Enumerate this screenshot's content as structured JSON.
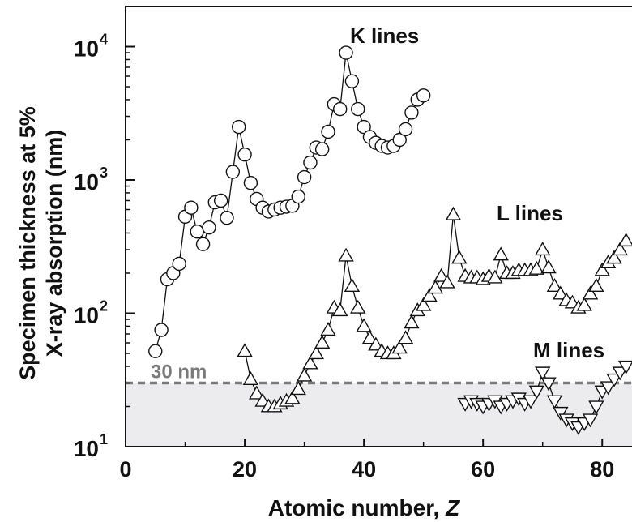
{
  "chart_data": {
    "type": "scatter",
    "title": "",
    "xlabel": "Atomic number, ",
    "xlabel_var": "Z",
    "ylabel_line1": "Specimen thickness at 5%",
    "ylabel_line2": "X-ray absorption (nm)",
    "xlim": [
      0,
      85
    ],
    "ylim": [
      10,
      20000
    ],
    "y_scale": "log",
    "grid": false,
    "x_ticks": [
      0,
      20,
      40,
      60,
      80
    ],
    "x_tick_labels": [
      "0",
      "20",
      "40",
      "60",
      "80"
    ],
    "y_ticks": [
      10,
      100,
      1000,
      10000
    ],
    "y_tick_bases": [
      "10",
      "10",
      "10",
      "10"
    ],
    "y_tick_exponents": [
      "1",
      "2",
      "3",
      "4"
    ],
    "reference_line": {
      "value": 30,
      "label": "30 nm",
      "color": "#7a7a7a",
      "shade_color": "#ececef"
    },
    "series": [
      {
        "name": "K lines",
        "marker": "circle",
        "x": [
          5,
          6,
          7,
          8,
          9,
          10,
          11,
          12,
          13,
          14,
          15,
          16,
          17,
          18,
          19,
          20,
          21,
          22,
          23,
          24,
          25,
          26,
          27,
          28,
          29,
          30,
          31,
          32,
          33,
          34,
          35,
          36,
          37,
          38,
          39,
          40,
          41,
          42,
          43,
          44,
          45,
          46,
          47,
          48,
          49,
          50
        ],
        "y": [
          52,
          75,
          180,
          200,
          235,
          530,
          620,
          410,
          330,
          440,
          680,
          700,
          520,
          1150,
          2500,
          1550,
          950,
          720,
          620,
          580,
          600,
          620,
          630,
          640,
          750,
          1050,
          1350,
          1750,
          1700,
          2300,
          3700,
          3400,
          9000,
          5500,
          3400,
          2500,
          2100,
          1900,
          1800,
          1750,
          1800,
          2000,
          2400,
          3200,
          4000,
          4300
        ]
      },
      {
        "name": "L lines",
        "marker": "triangle-up",
        "x": [
          20,
          21,
          22,
          23,
          24,
          25,
          26,
          27,
          28,
          29,
          30,
          31,
          32,
          33,
          34,
          35,
          36,
          37,
          38,
          39,
          40,
          41,
          42,
          43,
          44,
          45,
          46,
          47,
          48,
          49,
          50,
          51,
          52,
          53,
          54,
          55,
          56,
          57,
          58,
          59,
          60,
          61,
          62,
          63,
          64,
          65,
          66,
          67,
          68,
          69,
          70,
          71,
          72,
          73,
          74,
          75,
          76,
          77,
          78,
          79,
          80,
          81,
          82,
          83,
          84
        ],
        "y": [
          52,
          32,
          25,
          22,
          20,
          20,
          21,
          22,
          23,
          27,
          34,
          42,
          50,
          60,
          75,
          110,
          105,
          270,
          160,
          110,
          80,
          65,
          58,
          52,
          50,
          50,
          55,
          65,
          85,
          105,
          115,
          135,
          155,
          190,
          170,
          550,
          260,
          190,
          185,
          185,
          180,
          190,
          185,
          275,
          200,
          200,
          210,
          210,
          210,
          215,
          300,
          220,
          160,
          140,
          125,
          120,
          110,
          115,
          140,
          160,
          210,
          240,
          260,
          300,
          350
        ]
      },
      {
        "name": "M lines",
        "marker": "triangle-down",
        "x": [
          57,
          58,
          59,
          60,
          61,
          62,
          63,
          64,
          65,
          66,
          67,
          68,
          69,
          70,
          71,
          72,
          73,
          74,
          75,
          76,
          77,
          78,
          79,
          80,
          81,
          82,
          83,
          84
        ],
        "y": [
          21,
          22,
          21,
          20,
          21,
          22,
          20,
          21,
          22,
          23,
          21,
          22,
          26,
          36,
          30,
          22,
          18,
          16,
          15,
          14,
          15,
          16,
          20,
          26,
          28,
          32,
          36,
          40
        ]
      }
    ]
  }
}
